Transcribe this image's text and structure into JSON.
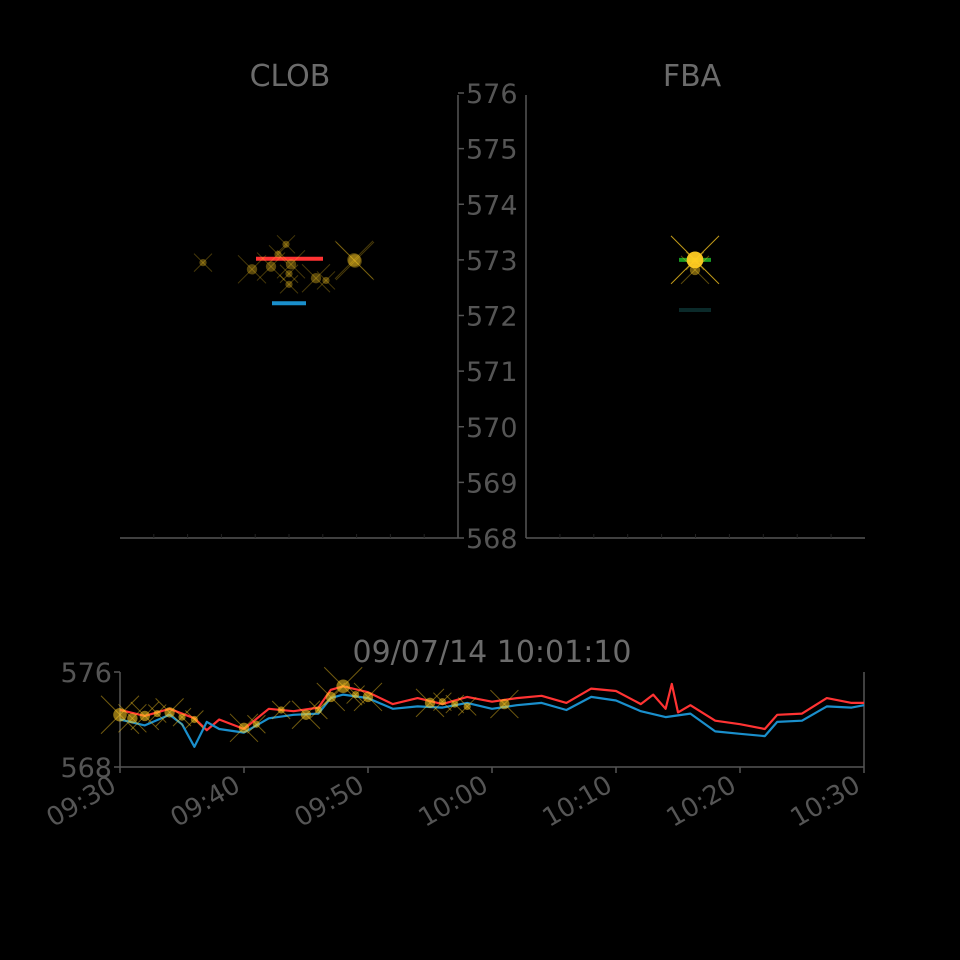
{
  "colors": {
    "background": "#000000",
    "text": "#6b6b6b",
    "axis": "#555555",
    "ask": "#ff3333",
    "bid": "#1a8fcc",
    "trade": "#ffcc22",
    "fba_ask": "#1a9922",
    "fba_bid": "#0b2a2a"
  },
  "chart_data": [
    {
      "type": "scatter",
      "title": "CLOB",
      "ylim": [
        568,
        576
      ],
      "grid": false,
      "levels": [
        {
          "role": "ask",
          "y": 573.02
        },
        {
          "role": "bid",
          "y": 572.22
        }
      ],
      "trades": [
        {
          "y": 572.98,
          "size": 3
        },
        {
          "y": 572.83,
          "size": 2
        },
        {
          "y": 572.88,
          "size": 2
        },
        {
          "y": 572.92,
          "size": 2
        },
        {
          "y": 573.1,
          "size": 1
        },
        {
          "y": 573.28,
          "size": 1
        },
        {
          "y": 572.67,
          "size": 2
        },
        {
          "y": 572.56,
          "size": 1
        },
        {
          "y": 573.0,
          "size": 3
        },
        {
          "y": 572.95,
          "size": 1
        },
        {
          "y": 572.75,
          "size": 1
        },
        {
          "y": 572.63,
          "size": 1
        }
      ]
    },
    {
      "type": "scatter",
      "title": "FBA",
      "ylim": [
        568,
        576
      ],
      "yticks": [
        "576",
        "575",
        "574",
        "573",
        "572",
        "571",
        "570",
        "569",
        "568"
      ],
      "grid": false,
      "levels": [
        {
          "role": "ask",
          "y": 573.0
        },
        {
          "role": "bid",
          "y": 572.1
        }
      ],
      "trades": [
        {
          "y": 573.0,
          "size": 4
        },
        {
          "y": 572.82,
          "size": 2
        },
        {
          "y": 572.98,
          "size": 1
        }
      ]
    },
    {
      "type": "line",
      "title": "09/07/14 10:01:10",
      "ylim": [
        568,
        576
      ],
      "yticks": [
        "576",
        "568"
      ],
      "xticks": [
        "09:30",
        "09:40",
        "09:50",
        "10:00",
        "10:10",
        "10:20",
        "10:30"
      ],
      "grid": false,
      "series": [
        {
          "role": "ask",
          "values": [
            {
              "t": "09:30",
              "y": 572.8
            },
            {
              "t": "09:32",
              "y": 572.3
            },
            {
              "t": "09:34",
              "y": 572.9
            },
            {
              "t": "09:36",
              "y": 572.1
            },
            {
              "t": "09:37",
              "y": 571.1
            },
            {
              "t": "09:38",
              "y": 572.0
            },
            {
              "t": "09:40",
              "y": 571.2
            },
            {
              "t": "09:42",
              "y": 572.9
            },
            {
              "t": "09:44",
              "y": 572.7
            },
            {
              "t": "09:46",
              "y": 573.0
            },
            {
              "t": "09:47",
              "y": 574.5
            },
            {
              "t": "09:48",
              "y": 574.8
            },
            {
              "t": "09:50",
              "y": 574.3
            },
            {
              "t": "09:52",
              "y": 573.3
            },
            {
              "t": "09:54",
              "y": 573.8
            },
            {
              "t": "09:56",
              "y": 573.3
            },
            {
              "t": "09:58",
              "y": 573.9
            },
            {
              "t": "10:00",
              "y": 573.5
            },
            {
              "t": "10:02",
              "y": 573.8
            },
            {
              "t": "10:04",
              "y": 574.0
            },
            {
              "t": "10:06",
              "y": 573.4
            },
            {
              "t": "10:08",
              "y": 574.6
            },
            {
              "t": "10:10",
              "y": 574.4
            },
            {
              "t": "10:12",
              "y": 573.3
            },
            {
              "t": "10:13",
              "y": 574.1
            },
            {
              "t": "10:14",
              "y": 572.9
            },
            {
              "t": "10:14.5",
              "y": 575.0
            },
            {
              "t": "10:15",
              "y": 572.6
            },
            {
              "t": "10:16",
              "y": 573.2
            },
            {
              "t": "10:18",
              "y": 571.9
            },
            {
              "t": "10:20",
              "y": 571.6
            },
            {
              "t": "10:22",
              "y": 571.2
            },
            {
              "t": "10:23",
              "y": 572.4
            },
            {
              "t": "10:25",
              "y": 572.5
            },
            {
              "t": "10:27",
              "y": 573.8
            },
            {
              "t": "10:29",
              "y": 573.4
            },
            {
              "t": "10:30",
              "y": 573.4
            }
          ]
        },
        {
          "role": "bid",
          "values": [
            {
              "t": "09:30",
              "y": 572.0
            },
            {
              "t": "09:32",
              "y": 571.5
            },
            {
              "t": "09:34",
              "y": 572.4
            },
            {
              "t": "09:35",
              "y": 571.6
            },
            {
              "t": "09:36",
              "y": 569.7
            },
            {
              "t": "09:37",
              "y": 571.8
            },
            {
              "t": "09:38",
              "y": 571.2
            },
            {
              "t": "09:40",
              "y": 570.9
            },
            {
              "t": "09:42",
              "y": 572.1
            },
            {
              "t": "09:44",
              "y": 572.4
            },
            {
              "t": "09:46",
              "y": 572.5
            },
            {
              "t": "09:47",
              "y": 573.8
            },
            {
              "t": "09:48",
              "y": 574.1
            },
            {
              "t": "09:50",
              "y": 573.8
            },
            {
              "t": "09:52",
              "y": 572.9
            },
            {
              "t": "09:54",
              "y": 573.1
            },
            {
              "t": "09:56",
              "y": 573.0
            },
            {
              "t": "09:58",
              "y": 573.4
            },
            {
              "t": "10:00",
              "y": 572.9
            },
            {
              "t": "10:02",
              "y": 573.2
            },
            {
              "t": "10:04",
              "y": 573.4
            },
            {
              "t": "10:06",
              "y": 572.8
            },
            {
              "t": "10:08",
              "y": 573.9
            },
            {
              "t": "10:10",
              "y": 573.6
            },
            {
              "t": "10:12",
              "y": 572.7
            },
            {
              "t": "10:14",
              "y": 572.2
            },
            {
              "t": "10:16",
              "y": 572.5
            },
            {
              "t": "10:18",
              "y": 571.0
            },
            {
              "t": "10:20",
              "y": 570.8
            },
            {
              "t": "10:22",
              "y": 570.6
            },
            {
              "t": "10:23",
              "y": 571.8
            },
            {
              "t": "10:25",
              "y": 571.9
            },
            {
              "t": "10:27",
              "y": 573.1
            },
            {
              "t": "10:29",
              "y": 573.0
            },
            {
              "t": "10:30",
              "y": 573.2
            }
          ]
        }
      ],
      "trades": [
        {
          "t": "09:30",
          "y": 572.4,
          "size": 3
        },
        {
          "t": "09:31",
          "y": 572.1,
          "size": 2
        },
        {
          "t": "09:32",
          "y": 572.3,
          "size": 2
        },
        {
          "t": "09:33",
          "y": 572.5,
          "size": 1
        },
        {
          "t": "09:34",
          "y": 572.6,
          "size": 2
        },
        {
          "t": "09:35",
          "y": 572.2,
          "size": 1
        },
        {
          "t": "09:36",
          "y": 572.0,
          "size": 1
        },
        {
          "t": "09:40",
          "y": 571.3,
          "size": 2
        },
        {
          "t": "09:41",
          "y": 571.6,
          "size": 1
        },
        {
          "t": "09:43",
          "y": 572.8,
          "size": 1
        },
        {
          "t": "09:45",
          "y": 572.4,
          "size": 2
        },
        {
          "t": "09:46",
          "y": 572.8,
          "size": 1
        },
        {
          "t": "09:47",
          "y": 573.9,
          "size": 2
        },
        {
          "t": "09:48",
          "y": 574.8,
          "size": 3
        },
        {
          "t": "09:49",
          "y": 574.1,
          "size": 1
        },
        {
          "t": "09:50",
          "y": 573.9,
          "size": 2
        },
        {
          "t": "09:55",
          "y": 573.4,
          "size": 2
        },
        {
          "t": "09:56",
          "y": 573.5,
          "size": 1
        },
        {
          "t": "09:57",
          "y": 573.3,
          "size": 1
        },
        {
          "t": "09:58",
          "y": 573.1,
          "size": 1
        },
        {
          "t": "10:01",
          "y": 573.3,
          "size": 2
        }
      ]
    }
  ]
}
